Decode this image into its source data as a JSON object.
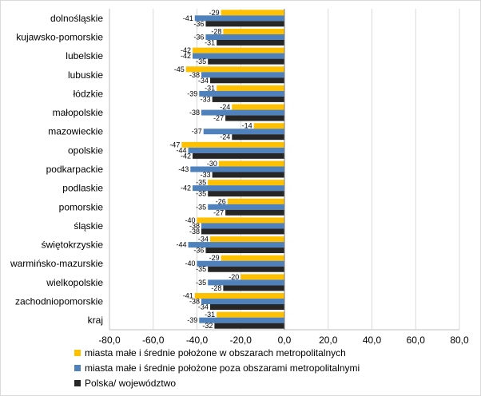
{
  "chart_data": {
    "type": "bar",
    "orientation": "horizontal",
    "categories": [
      "dolnośląskie",
      "kujawsko-pomorskie",
      "lubelskie",
      "lubuskie",
      "łódzkie",
      "małopolskie",
      "mazowieckie",
      "opolskie",
      "podkarpackie",
      "podlaskie",
      "pomorskie",
      "śląskie",
      "świętokrzyskie",
      "warmińsko-mazurskie",
      "wielkopolskie",
      "zachodniopomorskie",
      "kraj"
    ],
    "series": [
      {
        "name": "miasta małe i średnie położone w obszarach metropolitalnych",
        "color": "#FFC000",
        "values": [
          -29,
          -28,
          -42,
          -45,
          -31,
          -24,
          -14,
          -47,
          -30,
          -35,
          -26,
          -40,
          -34,
          -29,
          -20,
          -41,
          -31
        ]
      },
      {
        "name": "miasta małe i średnie położone poza obszarami metropolitalnymi",
        "color": "#4F81BD",
        "values": [
          -41,
          -36,
          -42,
          -38,
          -39,
          -38,
          -37,
          -44,
          -43,
          -42,
          -35,
          -38,
          -44,
          -40,
          -35,
          -38,
          -39
        ]
      },
      {
        "name": "Polska/ województwo",
        "color": "#262626",
        "values": [
          -36,
          -31,
          -35,
          -34,
          -33,
          -27,
          -24,
          -42,
          -33,
          -35,
          -27,
          -38,
          -36,
          -35,
          -28,
          -34,
          -32
        ]
      }
    ],
    "xlim": [
      -80,
      80
    ],
    "xticks": [
      "-80,0",
      "-60,0",
      "-40,0",
      "-20,0",
      "0,0",
      "20,0",
      "40,0",
      "60,0",
      "80,0"
    ],
    "xtick_values": [
      -80,
      -60,
      -40,
      -20,
      0,
      20,
      40,
      60,
      80
    ],
    "grid": "vertical",
    "legend_position": "bottom"
  }
}
